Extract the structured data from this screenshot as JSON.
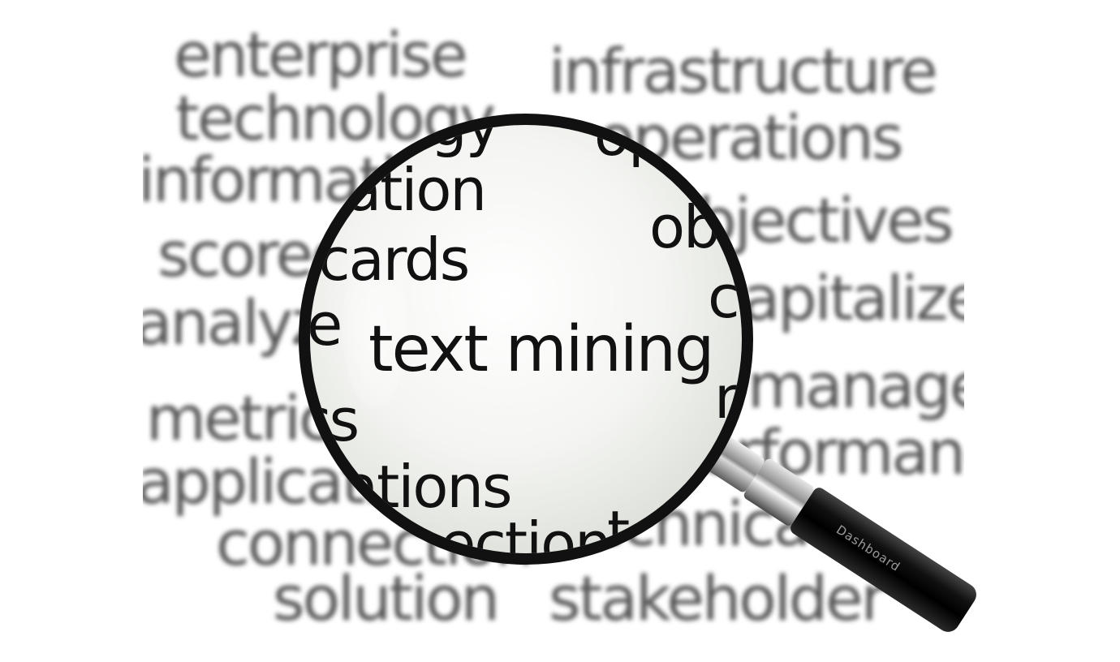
{
  "background_words": [
    "enterprise",
    "infrastructure",
    "technology",
    "operations",
    "information",
    "objectives",
    "scorecards",
    "capitalize",
    "analyze",
    "manage",
    "metrics",
    "performance",
    "applications",
    "connection",
    "technical",
    "solution",
    "stakeholder"
  ],
  "lens_words": [
    "gy",
    "ation",
    "op",
    "ob",
    "cards",
    "c",
    "e",
    "text mining",
    "m",
    "cs",
    "ations",
    "ection",
    "te"
  ],
  "handle_label": "Dashboard",
  "colors": {
    "background": "#ffffff",
    "blurred_text": "#555555",
    "lens_text": "#111111",
    "lens_rim": "#111111",
    "handle_grip": "#000000"
  }
}
